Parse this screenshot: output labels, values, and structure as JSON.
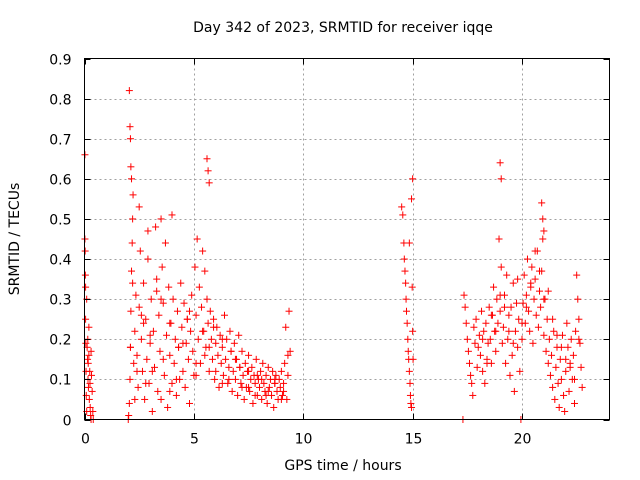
{
  "chart_data": {
    "type": "scatter",
    "title": "Day 342 of 2023, SRMTID for receiver iqqe",
    "xlabel": "GPS time / hours",
    "ylabel": "SRMTID / TECUs",
    "xlim": [
      0,
      24
    ],
    "ylim": [
      0,
      0.9
    ],
    "x_ticks": [
      0,
      5,
      10,
      15,
      20
    ],
    "y_ticks": [
      0,
      0.1,
      0.2,
      0.3,
      0.4,
      0.5,
      0.6,
      0.7,
      0.8,
      0.9
    ],
    "x_tick_labels": [
      "0",
      "5",
      "10",
      "15",
      "20"
    ],
    "y_tick_labels": [
      "0",
      "0.1",
      "0.2",
      "0.3",
      "0.4",
      "0.5",
      "0.6",
      "0.7",
      "0.8",
      "0.9"
    ],
    "grid": true,
    "marker": "+",
    "color": "#ff0000",
    "series": [
      {
        "name": "SRMTID",
        "x": [
          0.02,
          0.02,
          0.03,
          0.04,
          0.05,
          0.05,
          0.06,
          0.07,
          0.08,
          0.1,
          0.12,
          0.14,
          0.15,
          0.16,
          0.17,
          0.18,
          0.2,
          0.22,
          0.24,
          0.25,
          0.26,
          0.28,
          0.3,
          0.32,
          0.35,
          0.38,
          0.4,
          0.1,
          0.2,
          0.3,
          2.0,
          2.02,
          2.05,
          2.08,
          2.1,
          2.12,
          2.15,
          2.18,
          2.2,
          2.22,
          2.25,
          2.3,
          2.35,
          2.4,
          2.45,
          2.5,
          2.55,
          2.6,
          2.65,
          2.7,
          2.75,
          2.8,
          2.85,
          2.9,
          2.95,
          3.0,
          3.05,
          3.1,
          3.15,
          3.2,
          3.25,
          3.3,
          3.35,
          3.4,
          3.45,
          3.5,
          3.55,
          3.6,
          3.65,
          3.7,
          3.75,
          3.8,
          3.85,
          3.9,
          3.95,
          4.0,
          4.05,
          4.1,
          4.15,
          4.2,
          4.25,
          4.3,
          4.35,
          4.4,
          4.45,
          4.5,
          4.55,
          4.6,
          4.65,
          4.7,
          4.75,
          4.8,
          4.85,
          4.9,
          4.95,
          5.0,
          5.05,
          5.1,
          5.15,
          5.2,
          5.25,
          5.3,
          5.35,
          5.4,
          5.45,
          5.5,
          5.55,
          5.6,
          5.65,
          5.7,
          5.75,
          5.8,
          5.85,
          5.9,
          5.95,
          6.0,
          6.05,
          6.1,
          6.15,
          6.2,
          6.25,
          6.3,
          6.35,
          6.4,
          6.45,
          6.5,
          6.55,
          6.6,
          6.65,
          6.7,
          6.75,
          6.8,
          6.85,
          6.9,
          6.95,
          7.0,
          7.05,
          7.1,
          7.15,
          7.2,
          7.25,
          7.3,
          7.35,
          7.4,
          7.45,
          7.5,
          7.55,
          7.6,
          7.65,
          7.7,
          7.75,
          7.8,
          7.85,
          7.9,
          7.95,
          8.0,
          8.05,
          8.1,
          8.15,
          8.2,
          8.25,
          8.3,
          8.35,
          8.4,
          8.45,
          8.5,
          8.55,
          8.6,
          8.65,
          8.7,
          8.75,
          8.8,
          8.85,
          8.9,
          8.95,
          9.0,
          9.05,
          9.1,
          9.15,
          9.2,
          9.25,
          9.3,
          9.35,
          9.4,
          14.5,
          14.55,
          14.6,
          14.62,
          14.65,
          14.68,
          14.7,
          14.72,
          14.75,
          14.78,
          14.8,
          14.82,
          14.85,
          14.88,
          14.9,
          14.92,
          14.95,
          14.98,
          15.0,
          15.02,
          17.3,
          17.35,
          17.4,
          17.45,
          17.5,
          17.55,
          17.6,
          17.65,
          17.7,
          17.75,
          17.8,
          17.85,
          17.9,
          17.95,
          18.0,
          18.05,
          18.1,
          18.15,
          18.2,
          18.25,
          18.3,
          18.35,
          18.4,
          18.45,
          18.5,
          18.55,
          18.6,
          18.65,
          18.7,
          18.75,
          18.8,
          18.85,
          18.9,
          18.95,
          19.0,
          19.05,
          19.1,
          19.15,
          19.2,
          19.25,
          19.3,
          19.35,
          19.4,
          19.45,
          19.5,
          19.55,
          19.6,
          19.65,
          19.7,
          19.75,
          19.8,
          19.85,
          19.9,
          19.95,
          20.0,
          20.05,
          20.1,
          20.15,
          20.2,
          20.25,
          20.3,
          20.35,
          20.4,
          20.45,
          20.5,
          20.55,
          20.6,
          20.65,
          20.7,
          20.75,
          20.8,
          20.85,
          20.9,
          20.95,
          21.0,
          21.05,
          21.1,
          21.15,
          21.2,
          21.25,
          21.3,
          21.35,
          21.4,
          21.45,
          21.5,
          21.55,
          21.6,
          21.65,
          21.7,
          21.75,
          21.8,
          21.85,
          21.9,
          21.95,
          22.0,
          22.05,
          22.1,
          22.15,
          22.2,
          22.25,
          22.3,
          22.35,
          22.4,
          22.45,
          22.5,
          22.55,
          22.6,
          22.65,
          22.7,
          22.75,
          2.1,
          2.2,
          2.4,
          2.6,
          2.8,
          3.0,
          3.3,
          3.6,
          3.9,
          4.2,
          4.5,
          4.8,
          5.1,
          5.4,
          5.7,
          6.0,
          6.3,
          6.6,
          6.9,
          7.2,
          7.5,
          7.8,
          8.1,
          8.4,
          8.7,
          9.0,
          9.3,
          2.3,
          2.7,
          3.1,
          3.5,
          3.9,
          4.3,
          4.7,
          5.1,
          5.5,
          5.9,
          6.3,
          6.7,
          7.1,
          7.5,
          7.9,
          8.3,
          8.7,
          9.1,
          18.2,
          18.6,
          19.0,
          19.4,
          19.8,
          20.2,
          20.6,
          21.0,
          21.4,
          21.8,
          22.2,
          22.6,
          18.4,
          18.8,
          19.2,
          19.6,
          20.0,
          20.4,
          20.8,
          21.2,
          21.6,
          22.0,
          22.4,
          2.05,
          2.08,
          2.1,
          2.12,
          2.15,
          2.5,
          2.9,
          3.5,
          4.0,
          5.6,
          5.65,
          5.7,
          19.0,
          19.05,
          20.9,
          20.95,
          21.0,
          15.0,
          14.95,
          14.85
        ],
        "y": [
          0.66,
          0.45,
          0.42,
          0.36,
          0.33,
          0.25,
          0.19,
          0.12,
          0.06,
          0.02,
          0.18,
          0.15,
          0.2,
          0.1,
          0.14,
          0.08,
          0.16,
          0.05,
          0.12,
          0.09,
          0.03,
          0.01,
          0.17,
          0.11,
          0.07,
          0.02,
          0.0,
          0.3,
          0.23,
          0.0,
          0.0,
          0.01,
          0.04,
          0.1,
          0.18,
          0.27,
          0.37,
          0.44,
          0.5,
          0.56,
          0.14,
          0.22,
          0.31,
          0.16,
          0.08,
          0.28,
          0.42,
          0.2,
          0.12,
          0.34,
          0.05,
          0.25,
          0.15,
          0.4,
          0.09,
          0.19,
          0.3,
          0.02,
          0.22,
          0.13,
          0.48,
          0.35,
          0.07,
          0.26,
          0.17,
          0.05,
          0.38,
          0.29,
          0.11,
          0.44,
          0.21,
          0.03,
          0.33,
          0.16,
          0.24,
          0.09,
          0.3,
          0.14,
          0.2,
          0.06,
          0.27,
          0.18,
          0.1,
          0.34,
          0.23,
          0.12,
          0.29,
          0.08,
          0.19,
          0.25,
          0.15,
          0.04,
          0.22,
          0.31,
          0.17,
          0.11,
          0.38,
          0.26,
          0.45,
          0.2,
          0.33,
          0.14,
          0.28,
          0.42,
          0.22,
          0.37,
          0.18,
          0.3,
          0.24,
          0.12,
          0.27,
          0.2,
          0.15,
          0.25,
          0.1,
          0.19,
          0.23,
          0.16,
          0.08,
          0.21,
          0.14,
          0.18,
          0.11,
          0.26,
          0.15,
          0.2,
          0.09,
          0.13,
          0.22,
          0.17,
          0.07,
          0.12,
          0.19,
          0.1,
          0.15,
          0.06,
          0.21,
          0.13,
          0.09,
          0.17,
          0.11,
          0.05,
          0.14,
          0.08,
          0.12,
          0.16,
          0.07,
          0.1,
          0.13,
          0.04,
          0.11,
          0.09,
          0.15,
          0.06,
          0.1,
          0.08,
          0.12,
          0.05,
          0.14,
          0.09,
          0.07,
          0.11,
          0.04,
          0.13,
          0.08,
          0.1,
          0.06,
          0.12,
          0.03,
          0.09,
          0.11,
          0.07,
          0.05,
          0.1,
          0.08,
          0.12,
          0.06,
          0.09,
          0.14,
          0.23,
          0.05,
          0.16,
          0.27,
          0.17,
          0.53,
          0.51,
          0.44,
          0.4,
          0.37,
          0.34,
          0.3,
          0.27,
          0.24,
          0.2,
          0.17,
          0.15,
          0.12,
          0.09,
          0.06,
          0.04,
          0.03,
          0.33,
          0.22,
          0.15,
          0.0,
          0.31,
          0.28,
          0.24,
          0.2,
          0.17,
          0.14,
          0.11,
          0.09,
          0.06,
          0.23,
          0.19,
          0.25,
          0.13,
          0.18,
          0.21,
          0.16,
          0.27,
          0.12,
          0.22,
          0.09,
          0.24,
          0.15,
          0.19,
          0.28,
          0.2,
          0.14,
          0.26,
          0.33,
          0.22,
          0.17,
          0.3,
          0.24,
          0.45,
          0.27,
          0.38,
          0.19,
          0.23,
          0.31,
          0.14,
          0.36,
          0.2,
          0.26,
          0.11,
          0.28,
          0.16,
          0.34,
          0.07,
          0.22,
          0.29,
          0.18,
          0.25,
          0.12,
          0.0,
          0.2,
          0.29,
          0.36,
          0.24,
          0.31,
          0.4,
          0.27,
          0.22,
          0.33,
          0.38,
          0.19,
          0.3,
          0.35,
          0.26,
          0.42,
          0.23,
          0.32,
          0.28,
          0.37,
          0.45,
          0.21,
          0.3,
          0.17,
          0.25,
          0.14,
          0.2,
          0.11,
          0.16,
          0.08,
          0.22,
          0.05,
          0.13,
          0.18,
          0.09,
          0.03,
          0.15,
          0.1,
          0.21,
          0.06,
          0.02,
          0.12,
          0.24,
          0.18,
          0.07,
          0.14,
          0.2,
          0.1,
          0.16,
          0.04,
          0.22,
          0.36,
          0.3,
          0.25,
          0.19,
          0.13,
          0.08,
          0.18,
          0.34,
          0.12,
          0.26,
          0.09,
          0.21,
          0.32,
          0.15,
          0.24,
          0.1,
          0.19,
          0.27,
          0.14,
          0.22,
          0.18,
          0.12,
          0.2,
          0.1,
          0.15,
          0.08,
          0.12,
          0.06,
          0.1,
          0.07,
          0.09,
          0.05,
          0.11,
          0.05,
          0.24,
          0.12,
          0.3,
          0.07,
          0.18,
          0.25,
          0.11,
          0.16,
          0.23,
          0.09,
          0.17,
          0.13,
          0.08,
          0.11,
          0.06,
          0.1,
          0.07,
          0.2,
          0.26,
          0.31,
          0.22,
          0.35,
          0.28,
          0.42,
          0.3,
          0.25,
          0.18,
          0.13,
          0.2,
          0.14,
          0.22,
          0.28,
          0.19,
          0.24,
          0.34,
          0.37,
          0.32,
          0.21,
          0.15,
          0.1,
          0.82,
          0.73,
          0.7,
          0.63,
          0.6,
          0.53,
          0.47,
          0.5,
          0.51,
          0.65,
          0.62,
          0.59,
          0.64,
          0.6,
          0.54,
          0.5,
          0.47,
          0.6,
          0.55,
          0.44
        ]
      }
    ]
  }
}
